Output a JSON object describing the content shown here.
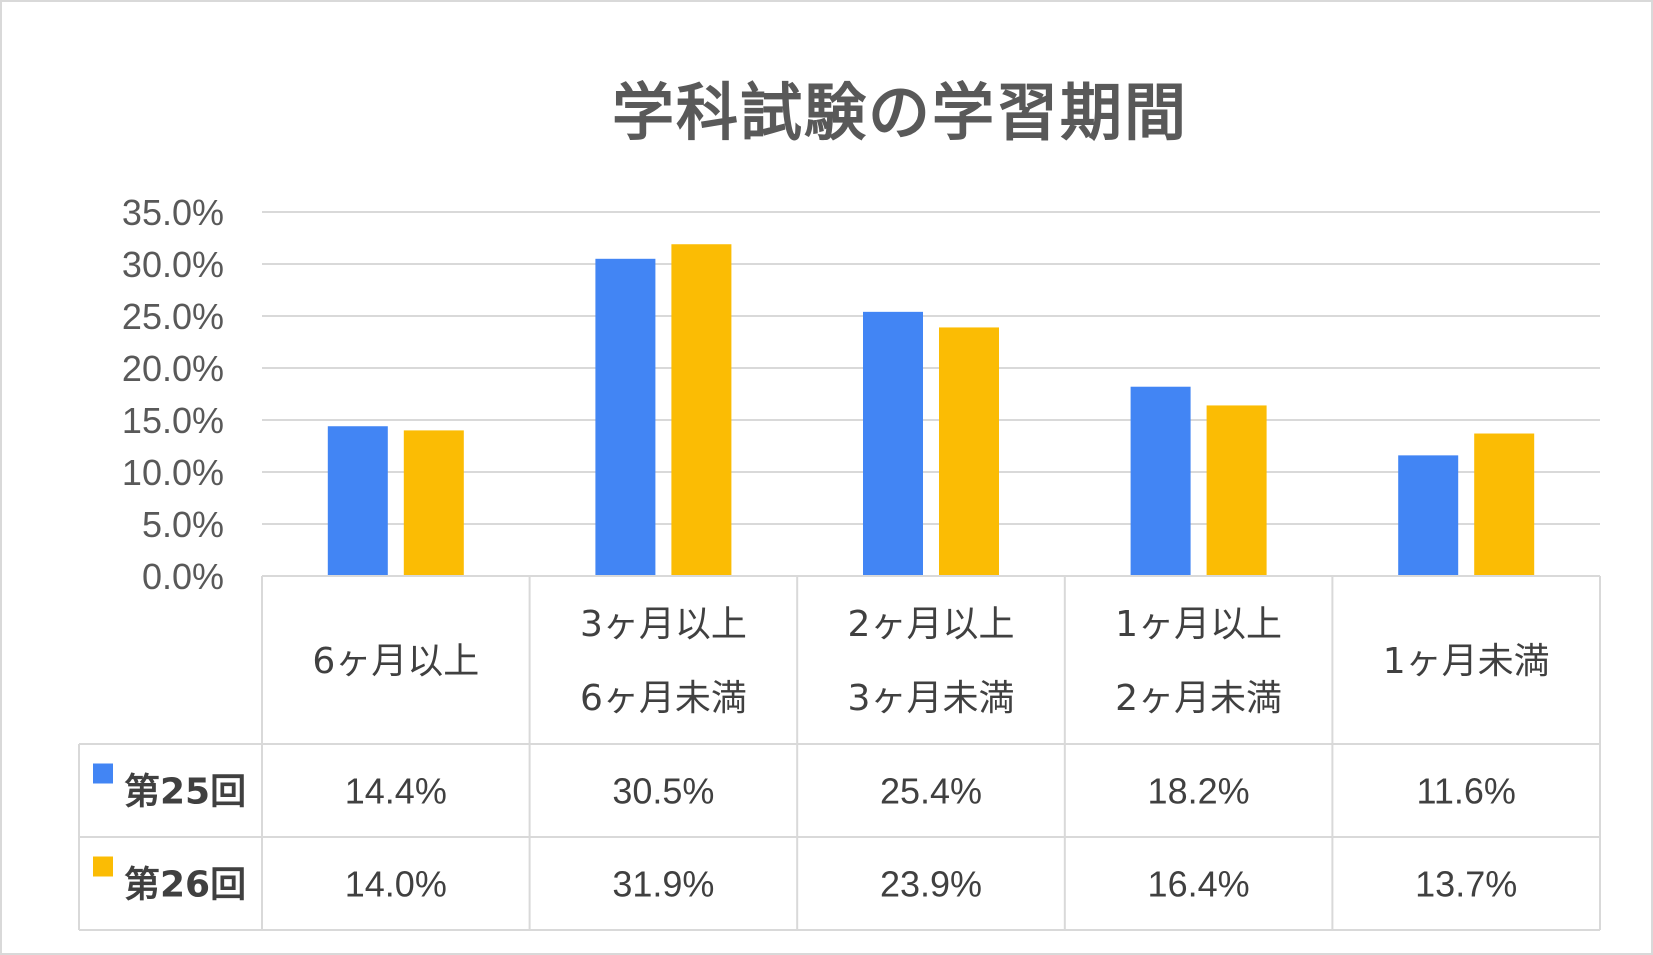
{
  "chart_data": {
    "type": "bar",
    "title": "学科試験の学習期間",
    "categories": [
      [
        "6ヶ月以上"
      ],
      [
        "3ヶ月以上",
        "6ヶ月未満"
      ],
      [
        "2ヶ月以上",
        "3ヶ月未満"
      ],
      [
        "1ヶ月以上",
        "2ヶ月未満"
      ],
      [
        "1ヶ月未満"
      ]
    ],
    "series": [
      {
        "name": "第25回",
        "color": "#4285f4",
        "values": [
          14.4,
          30.5,
          25.4,
          18.2,
          11.6
        ],
        "labels": [
          "14.4%",
          "30.5%",
          "25.4%",
          "18.2%",
          "11.6%"
        ]
      },
      {
        "name": "第26回",
        "color": "#fbbc04",
        "values": [
          14.0,
          31.9,
          23.9,
          16.4,
          13.7
        ],
        "labels": [
          "14.0%",
          "31.9%",
          "23.9%",
          "16.4%",
          "13.7%"
        ]
      }
    ],
    "ylim": [
      0,
      35
    ],
    "yticks": [
      "0.0%",
      "5.0%",
      "10.0%",
      "15.0%",
      "20.0%",
      "25.0%",
      "30.0%",
      "35.0%"
    ],
    "grid": true,
    "legend": "data-table"
  }
}
